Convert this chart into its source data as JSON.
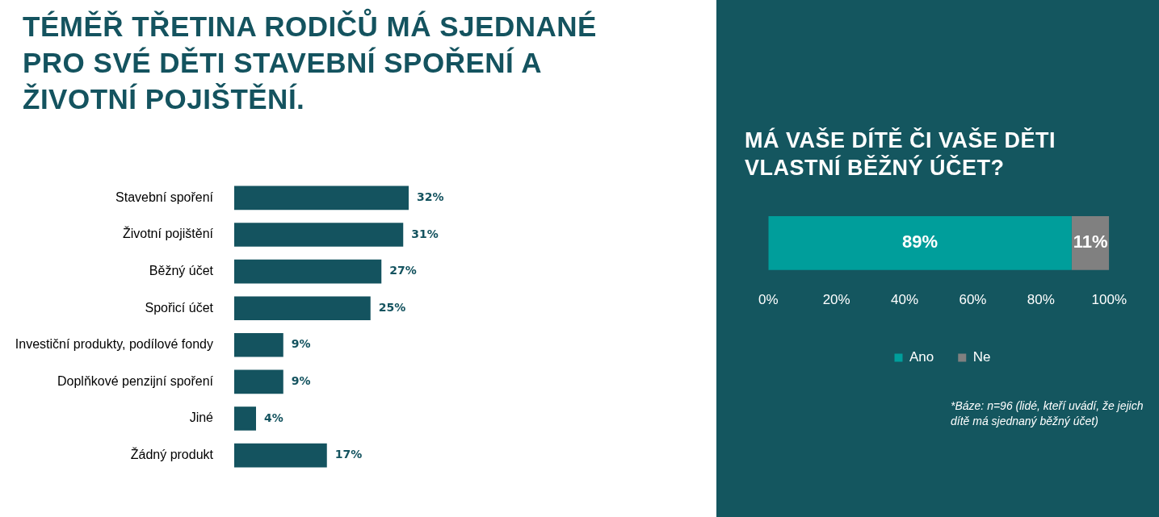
{
  "chart_data": [
    {
      "type": "bar",
      "title": "TÉMĚŘ TŘETINA RODIČŮ MÁ SJEDNANÉ PRO SVÉ DĚTI STAVEBNÍ SPOŘENÍ A ŽIVOTNÍ POJIŠTĚNÍ.",
      "orientation": "horizontal",
      "tick_labels": "y",
      "categories": [
        "Stavební spoření",
        "Životní pojištění",
        "Běžný účet",
        "Spořicí účet",
        "Investiční produkty, podílové fondy",
        "Doplňkové penzijní spoření",
        "Jiné",
        "Žádný produkt"
      ],
      "values": [
        32,
        31,
        27,
        25,
        9,
        9,
        4,
        17
      ],
      "value_labels": [
        "32%",
        "31%",
        "27%",
        "25%",
        "9%",
        "9%",
        "4%",
        "17%"
      ],
      "color": "#14535f"
    },
    {
      "type": "bar",
      "title": "MÁ VAŠE DÍTĚ ČI VAŠE DĚTI VLASTNÍ BĚŽNÝ ÚČET?",
      "orientation": "horizontal",
      "stacked": true,
      "tick_labels": "x",
      "legend": "bottom",
      "categories": [
        null
      ],
      "series": [
        {
          "name": "Ano",
          "color": "#009e9b",
          "values": [
            89
          ],
          "value_labels": [
            "89%"
          ]
        },
        {
          "name": "Ne",
          "color": "#808080",
          "values": [
            11
          ],
          "value_labels": [
            "11%"
          ]
        }
      ],
      "xlim": [
        0,
        100
      ],
      "xticks": [
        {
          "value": 0,
          "label": "0%"
        },
        {
          "value": 20,
          "label": "20%"
        },
        {
          "value": 40,
          "label": "40%"
        },
        {
          "value": 60,
          "label": "60%"
        },
        {
          "value": 80,
          "label": "80%"
        },
        {
          "value": 100,
          "label": "100%"
        }
      ],
      "annotations": [
        "*Báze: n=96 (lidé, kteří uvádí, že jejich dítě má sjednaný běžný účet)"
      ]
    }
  ]
}
